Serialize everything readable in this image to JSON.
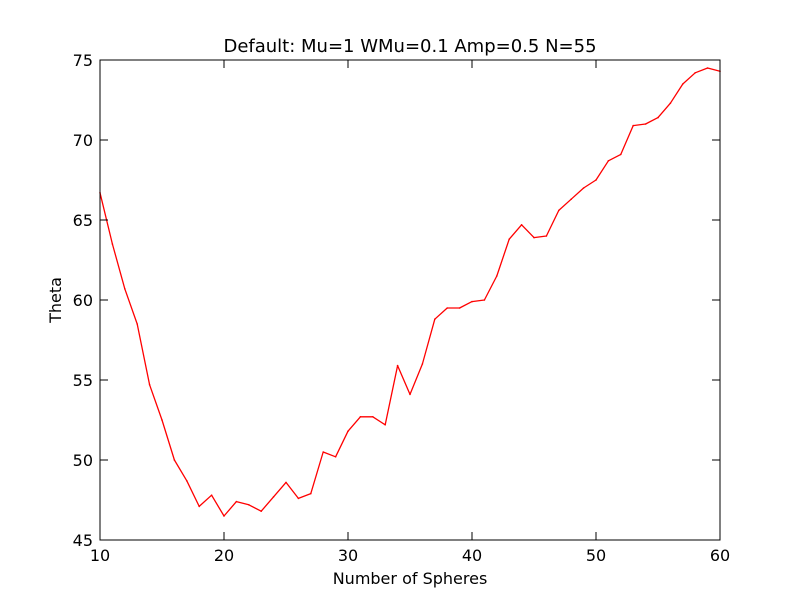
{
  "chart_data": {
    "type": "line",
    "title": "Default: Mu=1 WMu=0.1 Amp=0.5 N=55",
    "xlabel": "Number of Spheres",
    "ylabel": "Theta",
    "xlim": [
      10,
      60
    ],
    "ylim": [
      45,
      75
    ],
    "xticks": [
      "10",
      "20",
      "30",
      "40",
      "50",
      "60"
    ],
    "yticks": [
      "45",
      "50",
      "55",
      "60",
      "65",
      "70",
      "75"
    ],
    "grid": false,
    "legend": "none",
    "series": [
      {
        "color": "#ff0000",
        "x": [
          10,
          11,
          12,
          13,
          14,
          15,
          16,
          17,
          18,
          19,
          20,
          21,
          22,
          23,
          24,
          25,
          26,
          27,
          28,
          29,
          30,
          31,
          32,
          33,
          34,
          35,
          36,
          37,
          38,
          39,
          40,
          41,
          42,
          43,
          44,
          45,
          46,
          47,
          48,
          49,
          50,
          51,
          52,
          53,
          54,
          55,
          56,
          57,
          58,
          59,
          60
        ],
        "y": [
          66.7,
          63.5,
          60.7,
          58.5,
          54.7,
          52.5,
          50.0,
          48.7,
          47.1,
          47.8,
          46.5,
          47.4,
          47.2,
          46.8,
          47.7,
          48.6,
          47.6,
          47.9,
          50.5,
          50.2,
          51.8,
          52.7,
          52.7,
          52.2,
          55.9,
          54.1,
          56.0,
          58.8,
          59.5,
          59.5,
          59.9,
          60.0,
          61.5,
          63.8,
          64.7,
          63.9,
          64.0,
          65.6,
          66.3,
          67.0,
          67.5,
          68.7,
          69.1,
          70.9,
          71.0,
          71.4,
          72.3,
          73.5,
          74.2,
          74.5,
          74.3
        ]
      }
    ]
  }
}
